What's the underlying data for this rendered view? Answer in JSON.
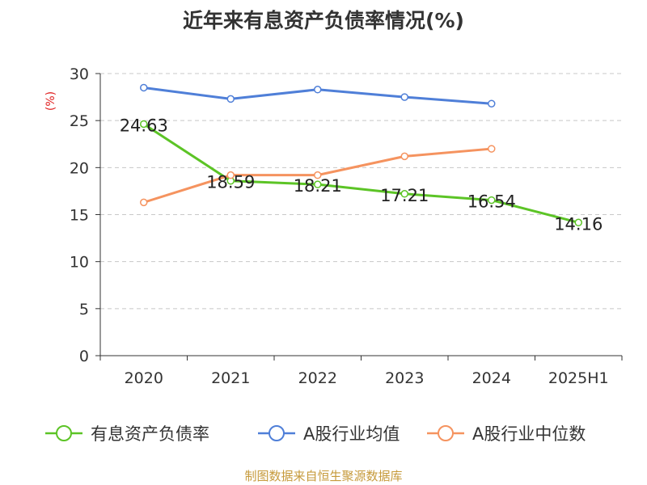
{
  "title": "近年来有息资产负债率情况(%)",
  "source": "制图数据来自恒生聚源数据库",
  "chart_data": {
    "type": "line",
    "title": "近年来有息资产负债率情况(%)",
    "xlabel": "",
    "ylabel": "(%)",
    "categories": [
      "2020",
      "2021",
      "2022",
      "2023",
      "2024",
      "2025H1"
    ],
    "ylim": [
      0,
      30
    ],
    "yticks": [
      0,
      5,
      10,
      15,
      20,
      25,
      30
    ],
    "grid": true,
    "legend_position": "bottom",
    "series": [
      {
        "name": "有息资产负债率",
        "color": "#5cc426",
        "values": [
          24.63,
          18.59,
          18.21,
          17.21,
          16.54,
          14.16
        ],
        "labels": [
          "24.63",
          "18.59",
          "18.21",
          "17.21",
          "16.54",
          "14.16"
        ]
      },
      {
        "name": "A股行业均值",
        "color": "#4f7fd8",
        "values": [
          28.5,
          27.3,
          28.3,
          27.5,
          26.8,
          null
        ]
      },
      {
        "name": "A股行业中位数",
        "color": "#f5935f",
        "values": [
          16.3,
          19.2,
          19.2,
          21.2,
          22.0,
          null
        ]
      }
    ]
  }
}
